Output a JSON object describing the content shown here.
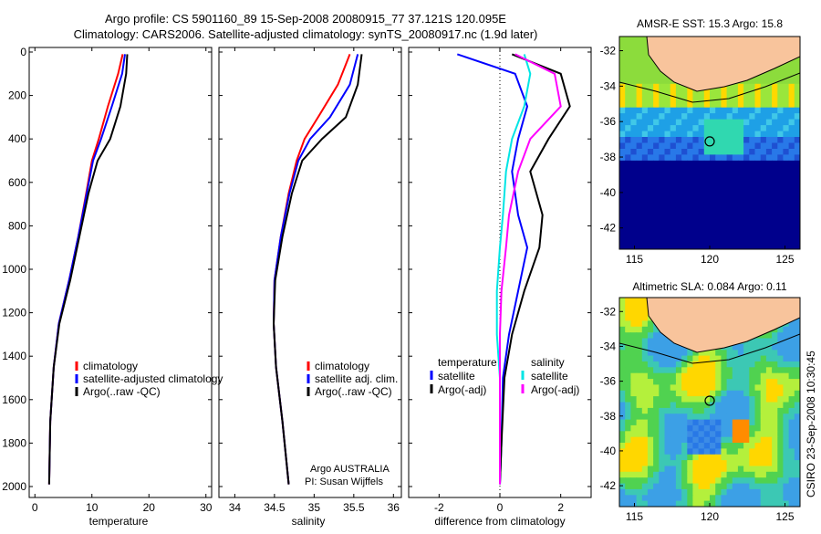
{
  "header": {
    "line1": "Argo profile: CS 5901160_89 15-Sep-2008 20080915_77 37.121S 120.095E",
    "line2": "Climatology: CARS2006. Satellite-adjusted climatology: synTS_20080917.nc (1.9d later)"
  },
  "colors": {
    "climatology": "#ff0000",
    "satellite": "#0000ff",
    "argo": "#000000",
    "salinity_sat": "#00e5e5",
    "salinity_argo": "#ff00ff",
    "land": "#f8c49c"
  },
  "chart_data": [
    {
      "type": "line",
      "panel": "temperature",
      "xlabel": "temperature",
      "ylabel": "",
      "xlim": [
        -1,
        31
      ],
      "ylim": [
        2000,
        0
      ],
      "xticks": [
        0,
        10,
        20,
        30
      ],
      "yticks": [
        0,
        200,
        400,
        600,
        800,
        1000,
        1200,
        1400,
        1600,
        1800,
        2000
      ],
      "legend": [
        "climatology",
        "satellite-adjusted climatology",
        "Argo(..raw -QC)"
      ],
      "series": [
        {
          "name": "climatology",
          "color": "#ff0000",
          "x": [
            15.4,
            14.6,
            12.8,
            11.2,
            10.0,
            9.0,
            7.6,
            6.0,
            4.2,
            3.3,
            2.7,
            2.5
          ],
          "y": [
            10,
            100,
            250,
            400,
            500,
            650,
            850,
            1050,
            1250,
            1450,
            1700,
            1990
          ]
        },
        {
          "name": "satellite-adjusted climatology",
          "color": "#0000ff",
          "x": [
            15.8,
            15.3,
            13.5,
            11.6,
            10.2,
            9.1,
            7.6,
            6.0,
            4.2,
            3.3,
            2.7,
            2.5
          ],
          "y": [
            10,
            100,
            250,
            400,
            500,
            650,
            850,
            1050,
            1250,
            1450,
            1700,
            1990
          ]
        },
        {
          "name": "Argo(..raw -QC)",
          "color": "#000000",
          "x": [
            16.2,
            16.0,
            15.0,
            13.2,
            11.0,
            9.4,
            7.8,
            6.2,
            4.3,
            3.3,
            2.7,
            2.5
          ],
          "y": [
            10,
            100,
            250,
            400,
            500,
            650,
            850,
            1050,
            1250,
            1450,
            1700,
            1990
          ]
        }
      ]
    },
    {
      "type": "line",
      "panel": "salinity",
      "xlabel": "salinity",
      "ylabel": "",
      "xlim": [
        33.8,
        36.1
      ],
      "ylim": [
        2000,
        0
      ],
      "xticks": [
        34,
        34.5,
        35,
        35.5,
        36
      ],
      "yticks": [],
      "legend": [
        "climatology",
        "satellite adj. clim.",
        "Argo(..raw -QC)"
      ],
      "annotation": [
        "Argo AUSTRALIA",
        "PI: Susan Wijffels"
      ],
      "series": [
        {
          "name": "climatology",
          "color": "#ff0000",
          "x": [
            35.45,
            35.3,
            35.05,
            34.88,
            34.78,
            34.68,
            34.58,
            34.5,
            34.49,
            34.52,
            34.6,
            34.68
          ],
          "y": [
            10,
            150,
            300,
            400,
            500,
            650,
            850,
            1050,
            1250,
            1450,
            1700,
            1990
          ]
        },
        {
          "name": "satellite adj. clim.",
          "color": "#0000ff",
          "x": [
            35.55,
            35.45,
            35.2,
            34.95,
            34.8,
            34.69,
            34.58,
            34.5,
            34.49,
            34.52,
            34.6,
            34.68
          ],
          "y": [
            10,
            150,
            300,
            400,
            500,
            650,
            850,
            1050,
            1250,
            1450,
            1700,
            1990
          ]
        },
        {
          "name": "Argo(..raw -QC)",
          "color": "#000000",
          "x": [
            35.6,
            35.55,
            35.4,
            35.1,
            34.85,
            34.72,
            34.6,
            34.51,
            34.49,
            34.52,
            34.6,
            34.68
          ],
          "y": [
            10,
            150,
            300,
            400,
            500,
            650,
            850,
            1050,
            1250,
            1450,
            1700,
            1990
          ]
        }
      ]
    },
    {
      "type": "line",
      "panel": "difference",
      "xlabel": "difference from climatology",
      "ylabel": "",
      "xlim": [
        -3,
        3
      ],
      "ylim": [
        2000,
        0
      ],
      "xticks": [
        -2,
        0,
        2
      ],
      "yticks": [],
      "legend": [
        "temperature",
        "satellite",
        "Argo(-adj)",
        "salinity",
        "satellite",
        "Argo(-adj)"
      ],
      "series": [
        {
          "name": "temperature satellite",
          "color": "#0000ff",
          "x": [
            -1.4,
            0.5,
            0.9,
            0.6,
            0.4,
            0.6,
            0.9,
            0.6,
            0.3,
            0.1,
            0.05,
            0.0
          ],
          "y": [
            10,
            100,
            250,
            400,
            550,
            750,
            900,
            1100,
            1300,
            1500,
            1800,
            1990
          ]
        },
        {
          "name": "temperature Argo(-adj)",
          "color": "#000000",
          "x": [
            0.4,
            2.0,
            2.3,
            1.6,
            1.0,
            1.4,
            1.3,
            0.8,
            0.4,
            0.15,
            0.05,
            0.0
          ],
          "y": [
            10,
            100,
            250,
            400,
            550,
            750,
            900,
            1100,
            1300,
            1500,
            1800,
            1990
          ]
        },
        {
          "name": "salinity satellite",
          "color": "#00e5e5",
          "x": [
            0.8,
            1.0,
            0.8,
            0.4,
            0.2,
            0.1,
            0.0,
            -0.1,
            -0.1,
            0.0,
            0.0,
            0.0
          ],
          "y": [
            10,
            100,
            250,
            400,
            550,
            750,
            900,
            1100,
            1300,
            1500,
            1800,
            1990
          ]
        },
        {
          "name": "salinity Argo(-adj)",
          "color": "#ff00ff",
          "x": [
            0.5,
            1.8,
            2.0,
            1.0,
            0.6,
            0.3,
            0.2,
            0.05,
            0.0,
            0.0,
            0.0,
            0.0
          ],
          "y": [
            10,
            100,
            250,
            400,
            550,
            750,
            900,
            1100,
            1300,
            1500,
            1800,
            1990
          ]
        }
      ]
    },
    {
      "type": "heatmap",
      "panel": "sst",
      "title": "AMSR-E SST: 15.3 Argo: 15.8",
      "yticks": [
        "-32",
        "-34",
        "-36",
        "-38",
        "-40",
        "-42"
      ],
      "xticks": [
        "115",
        "120",
        "125"
      ]
    },
    {
      "type": "heatmap",
      "panel": "sla",
      "title": "Altimetric SLA: 0.084 Argo: 0.11",
      "yticks": [
        "-32",
        "-34",
        "-36",
        "-38",
        "-40",
        "-42"
      ],
      "xticks": [
        "115",
        "120",
        "125"
      ]
    }
  ],
  "side_label": "CSIRO 23-Sep-2008 10:30:45"
}
